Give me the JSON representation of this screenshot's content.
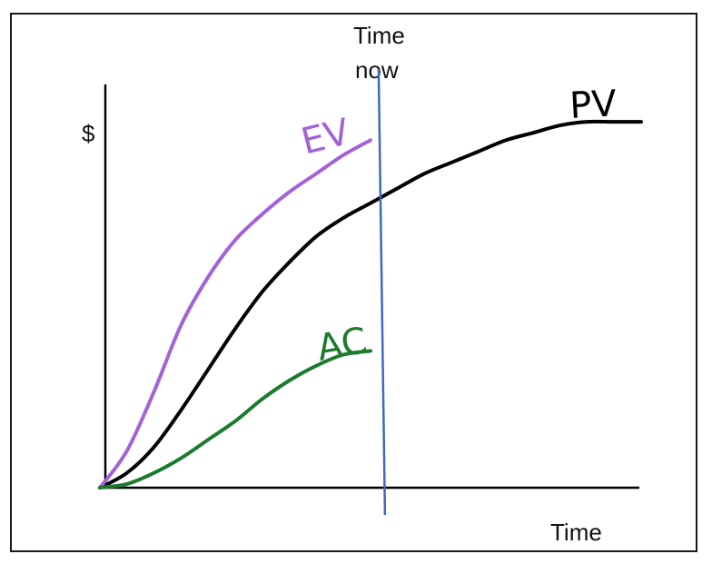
{
  "chart_data": {
    "type": "line",
    "title": "",
    "xlabel": "Time",
    "ylabel": "$",
    "xlim": [
      0,
      100
    ],
    "ylim": [
      0,
      100
    ],
    "grid": false,
    "legend": "none (series labelled inline)",
    "marker": {
      "label_line1": "Time",
      "label_line2": "now",
      "x": 52,
      "color": "#3d6bbf"
    },
    "series": [
      {
        "name": "PV",
        "color": "#000000",
        "x": [
          0,
          5,
          10,
          15,
          20,
          25,
          30,
          35,
          40,
          45,
          50,
          55,
          60,
          65,
          70,
          75,
          80,
          85,
          90,
          95,
          100
        ],
        "y": [
          0,
          4,
          11,
          21,
          32,
          43,
          53,
          61,
          68,
          73,
          77,
          81,
          85,
          88,
          91,
          94,
          96,
          98,
          99,
          99,
          99
        ]
      },
      {
        "name": "EV",
        "color": "#a462d8",
        "x": [
          0,
          5,
          10,
          15,
          20,
          25,
          30,
          35,
          40,
          45,
          50
        ],
        "y": [
          0,
          10,
          26,
          44,
          57,
          67,
          74,
          80,
          85,
          90,
          94
        ]
      },
      {
        "name": "AC",
        "color": "#1b7a2e",
        "x": [
          0,
          5,
          10,
          15,
          20,
          25,
          30,
          35,
          40,
          45,
          50
        ],
        "y": [
          0,
          1,
          4,
          8,
          13,
          18,
          24,
          29,
          33,
          36,
          37
        ]
      }
    ]
  }
}
